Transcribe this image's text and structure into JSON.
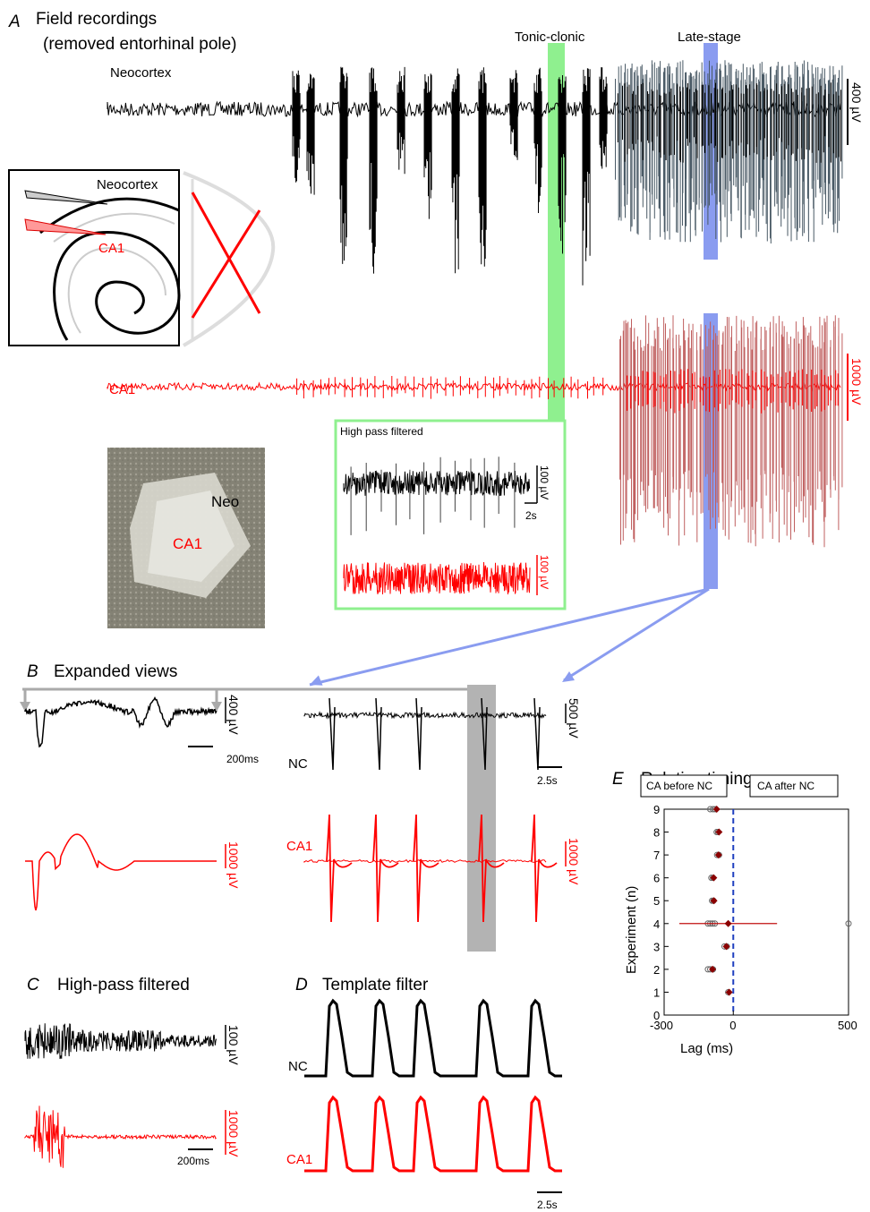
{
  "panels": {
    "A": {
      "letter": "A",
      "title_line1": "Field recordings",
      "title_line2": "(removed entorhinal pole)",
      "trace_neo_label": "Neocortex",
      "trace_ca1_label": "CA1",
      "tonic_label": "Tonic-clonic",
      "late_label": "Late-stage",
      "scale_neo": "400 µV",
      "scale_ca1": "1000 µV",
      "schematic_neo_label": "Neocortex",
      "schematic_ca1_label": "CA1",
      "photo_neo_label": "Neo",
      "photo_ca1_label": "CA1",
      "inset_title": "High pass filtered",
      "inset_scale_black": "100 µV",
      "inset_scale_red": "100 µV",
      "inset_time": "2s"
    },
    "B": {
      "letter": "B",
      "title": "Expanded views",
      "left_scale_black": "400 µV",
      "left_time": "200ms",
      "left_scale_red": "1000 µV",
      "right_nc_label": "NC",
      "right_ca1_label": "CA1",
      "right_scale_black": "500 µV",
      "right_time": "2.5s",
      "right_scale_red": "1000 µV"
    },
    "C": {
      "letter": "C",
      "title": "High-pass filtered",
      "scale_black": "100 µV",
      "scale_red": "1000 µV",
      "time": "200ms"
    },
    "D": {
      "letter": "D",
      "title": "Template filter",
      "nc_label": "NC",
      "ca1_label": "CA1",
      "time": "2.5s"
    },
    "E": {
      "letter": "E",
      "title": "Relative timing",
      "legend_before": "CA before NC",
      "legend_after": "CA after NC"
    }
  },
  "chart_data": {
    "type": "scatter",
    "title": "Relative timing",
    "xlabel": "Lag (ms)",
    "ylabel": "Experiment (n)",
    "xlim": [
      -300,
      500
    ],
    "ylim": [
      0,
      9
    ],
    "xticks": [
      "-300",
      "0",
      "500"
    ],
    "yticks": [
      "0",
      "1",
      "2",
      "3",
      "4",
      "5",
      "6",
      "7",
      "8",
      "9"
    ],
    "reference_line_x": 0,
    "series": [
      {
        "name": "means",
        "points": [
          {
            "n": 9,
            "mean": -72,
            "err": 6
          },
          {
            "n": 8,
            "mean": -62,
            "err": 5
          },
          {
            "n": 7,
            "mean": -64,
            "err": 4
          },
          {
            "n": 6,
            "mean": -85,
            "err": 5
          },
          {
            "n": 5,
            "mean": -84,
            "err": 4
          },
          {
            "n": 4,
            "mean": -22,
            "err": 212
          },
          {
            "n": 3,
            "mean": -30,
            "err": 5
          },
          {
            "n": 2,
            "mean": -90,
            "err": 8
          },
          {
            "n": 1,
            "mean": -18,
            "err": 4
          }
        ]
      },
      {
        "name": "individual",
        "points": [
          [
            -100,
            9
          ],
          [
            -88,
            9
          ],
          [
            -78,
            9
          ],
          [
            -72,
            8
          ],
          [
            -66,
            8
          ],
          [
            -70,
            7
          ],
          [
            -62,
            7
          ],
          [
            -95,
            6
          ],
          [
            -88,
            6
          ],
          [
            -92,
            5
          ],
          [
            -86,
            5
          ],
          [
            -110,
            4
          ],
          [
            -100,
            4
          ],
          [
            -90,
            4
          ],
          [
            -80,
            4
          ],
          [
            500,
            4
          ],
          [
            -38,
            3
          ],
          [
            -28,
            3
          ],
          [
            -110,
            2
          ],
          [
            -100,
            2
          ],
          [
            -88,
            2
          ],
          [
            -22,
            1
          ]
        ]
      }
    ]
  }
}
